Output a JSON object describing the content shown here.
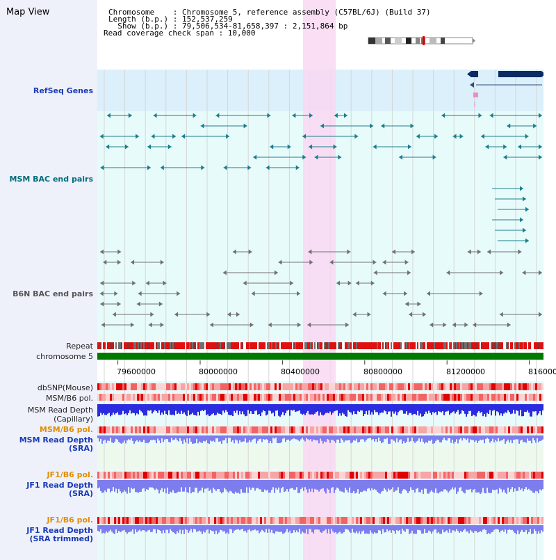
{
  "title": "Map View",
  "header": {
    "line1": "Chromosome    : Chromosome 5, reference assembly (C57BL/6J) (Build 37)",
    "line2": "Length (b.p.) : 152,537,259",
    "line3": "  Show (b.p.) : 79,506,534-81,658,397 : 2,151,864 bp",
    "line4": "Read coverage check span : 10,000"
  },
  "tracks": {
    "refseq": "RefSeq Genes",
    "msm_bac": "MSM BAC end pairs",
    "b6n_bac": "B6N BAC end pairs",
    "repeat": "Repeat",
    "chromosome": "chromosome 5",
    "dbsnp": "dbSNP(Mouse)",
    "msm_b6_pol1": "MSM/B6 pol.",
    "msm_depth_cap_1": "MSM Read Depth",
    "msm_depth_cap_2": "(Capillary)",
    "msm_b6_pol2": "MSM/B6 pol.",
    "msm_depth_sra_1": "MSM Read Depth",
    "msm_depth_sra_2": "(SRA)",
    "jf1_pol1": "JF1/B6 pol.",
    "jf1_depth_sra_1": "JF1 Read Depth",
    "jf1_depth_sra_2": "(SRA)",
    "jf1_pol2": "JF1/B6 pol.",
    "jf1_depth_trim_1": "JF1 Read Depth",
    "jf1_depth_trim_2": "(SRA trimmed)"
  },
  "axis": {
    "ticks": [
      "79600000",
      "80000000",
      "80400000",
      "80800000",
      "81200000",
      "816000"
    ]
  },
  "colors": {
    "highlight": "#f9d8f2",
    "refseq_bg": "#dbf0fb",
    "msm_color": "#1b7e8c",
    "b6n_color": "#707070",
    "chromosome": "#007a00",
    "depth_blue": "#2b2bdf",
    "depth_light": "#7d7dee"
  }
}
